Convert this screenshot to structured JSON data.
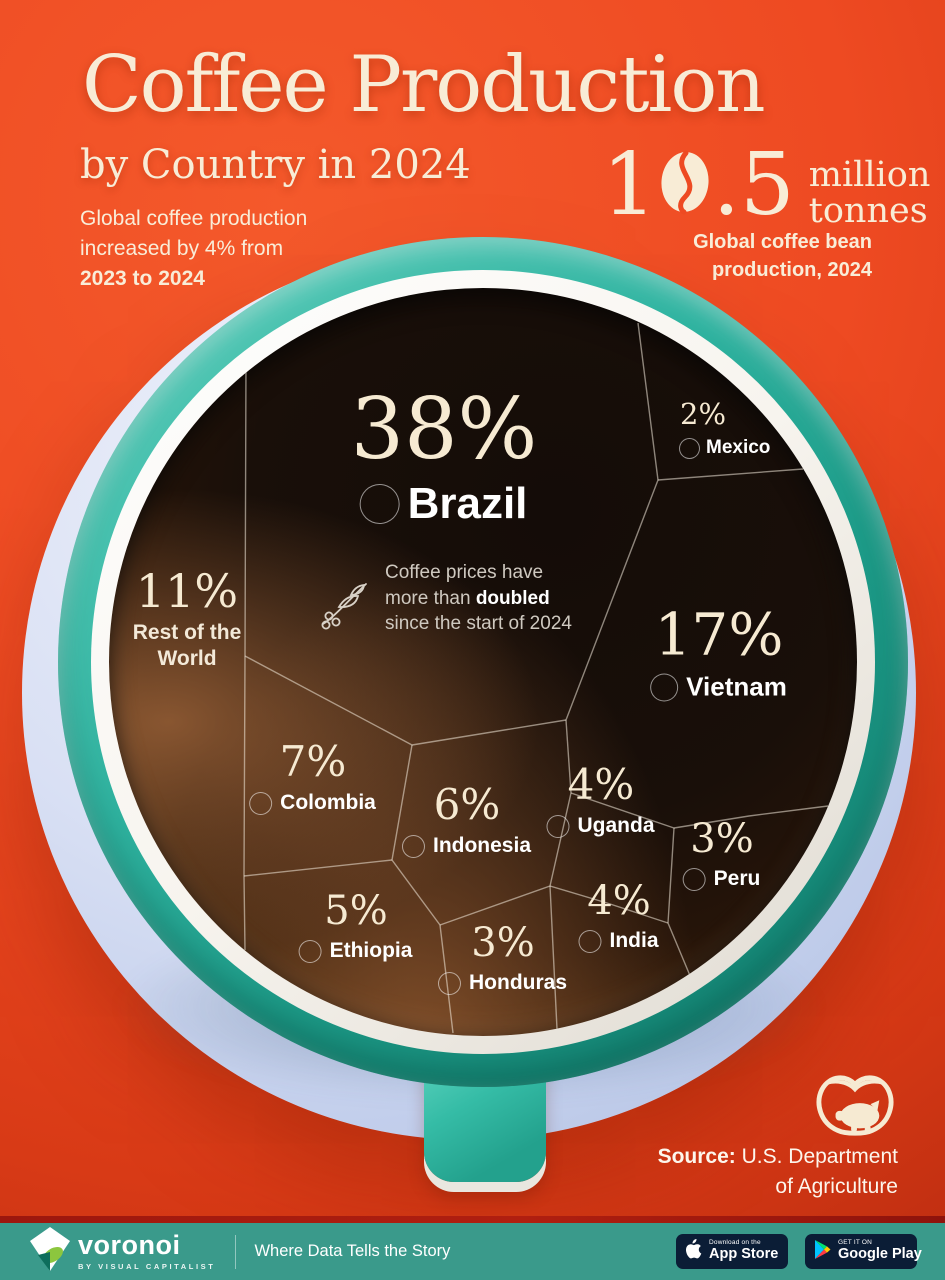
{
  "header": {
    "title": "Coffee Production",
    "subtitle": "by Country in 2024",
    "note_lines": [
      "Global coffee production",
      "increased by 4% from",
      "2023 to 2024"
    ],
    "stat": {
      "value": "10.5",
      "digit_pre": "1",
      "digit_post": ".5",
      "unit_line1": "million",
      "unit_line2": "tonnes",
      "caption_line1": "Global coffee bean",
      "caption_line2": "production, 2024"
    }
  },
  "chart_data": {
    "type": "voronoi",
    "title": "Coffee Production by Country in 2024",
    "value_unit": "% share of global coffee bean production",
    "total": "10.5 million tonnes",
    "items": [
      {
        "country": "Brazil",
        "share_pct": 38,
        "flag": "brazil-flag-icon"
      },
      {
        "country": "Vietnam",
        "share_pct": 17,
        "flag": "vietnam-flag-icon"
      },
      {
        "country": "Rest of the World",
        "share_pct": 11,
        "flag": null
      },
      {
        "country": "Colombia",
        "share_pct": 7,
        "flag": "colombia-flag-icon"
      },
      {
        "country": "Indonesia",
        "share_pct": 6,
        "flag": "indonesia-flag-icon"
      },
      {
        "country": "Ethiopia",
        "share_pct": 5,
        "flag": "ethiopia-flag-icon"
      },
      {
        "country": "Uganda",
        "share_pct": 4,
        "flag": "uganda-flag-icon"
      },
      {
        "country": "India",
        "share_pct": 4,
        "flag": "india-flag-icon"
      },
      {
        "country": "Peru",
        "share_pct": 3,
        "flag": "peru-flag-icon"
      },
      {
        "country": "Honduras",
        "share_pct": 3,
        "flag": "honduras-flag-icon"
      },
      {
        "country": "Mexico",
        "share_pct": 2,
        "flag": "mexico-flag-icon"
      }
    ],
    "annotation": {
      "pre": "Coffee prices have more than ",
      "bold": "doubled",
      "post": " since the start of 2024"
    }
  },
  "source": {
    "label": "Source:",
    "line1_rest": " U.S. Department",
    "line2": "of Agriculture"
  },
  "footer": {
    "brand": "voronoi",
    "brand_sub": "BY VISUAL CAPITALIST",
    "tagline": "Where Data Tells the Story",
    "badges": [
      {
        "store": "app-store",
        "icon": "apple-icon",
        "line1": "Download on the",
        "line2": "App Store"
      },
      {
        "store": "google-play",
        "icon": "google-play-icon",
        "line1": "GET IT ON",
        "line2": "Google Play"
      }
    ]
  },
  "icons": {
    "stat_zero": "coffee-bean-icon",
    "annotation": "coffee-branch-icon",
    "source_logo": "piggy-bank-book-icon",
    "footer_logo": "voronoi-logo-icon"
  },
  "colors": {
    "background": "#ee4a22",
    "cream": "#f8ecd6",
    "cup_teal": "#2fb3a0",
    "saucer": "#c3cfec",
    "footer_bar": "#3a9a8b",
    "badge_bg": "#0b1d36"
  }
}
